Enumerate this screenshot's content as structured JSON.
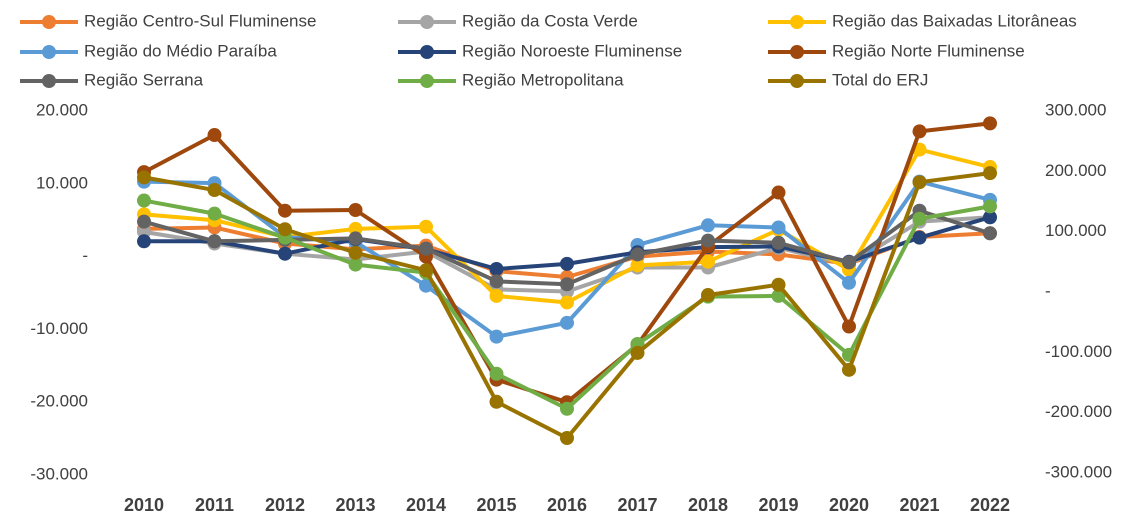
{
  "chart_data": {
    "type": "line",
    "categories": [
      "2010",
      "2011",
      "2012",
      "2013",
      "2014",
      "2015",
      "2016",
      "2017",
      "2018",
      "2019",
      "2020",
      "2021",
      "2022"
    ],
    "ylim": [
      -30000,
      20000
    ],
    "yticks": [
      {
        "value": -30000,
        "label": "-30.000"
      },
      {
        "value": -20000,
        "label": "-20.000"
      },
      {
        "value": -10000,
        "label": "-10.000"
      },
      {
        "value": 0,
        "label": "-"
      },
      {
        "value": 10000,
        "label": "10.000"
      },
      {
        "value": 20000,
        "label": "20.000"
      }
    ],
    "y2lim": [
      -300000,
      300000
    ],
    "y2ticks": [
      {
        "value": -300000,
        "label": "-300.000"
      },
      {
        "value": -200000,
        "label": "-200.000"
      },
      {
        "value": -100000,
        "label": "-100.000"
      },
      {
        "value": 0,
        "label": "-"
      },
      {
        "value": 100000,
        "label": "100.000"
      },
      {
        "value": 200000,
        "label": "200.000"
      },
      {
        "value": 300000,
        "label": "300.000"
      }
    ],
    "grid": false,
    "legend": "top",
    "series": [
      {
        "name": "Região Centro-Sul Fluminense",
        "color": "#ED7D31",
        "values": [
          3800,
          4000,
          1800,
          1000,
          1500,
          -2000,
          -2800,
          0,
          700,
          300,
          -1000,
          2700,
          3200
        ]
      },
      {
        "name": "Região da Costa Verde",
        "color": "#A5A5A5",
        "values": [
          3400,
          1800,
          400,
          -400,
          700,
          -4500,
          -4800,
          -1500,
          -1500,
          1200,
          -1100,
          4800,
          5400
        ]
      },
      {
        "name": "Região das Baixadas Litorâneas",
        "color": "#FFC000",
        "values": [
          5800,
          5000,
          2700,
          3800,
          4100,
          -5400,
          -6300,
          -1200,
          -700,
          3700,
          -1800,
          14700,
          12300
        ]
      },
      {
        "name": "Região do Médio Paraíba",
        "color": "#5B9BD5",
        "values": [
          10300,
          10100,
          2700,
          2000,
          -4000,
          -11000,
          -9100,
          1600,
          4300,
          4000,
          -3600,
          10300,
          7800
        ]
      },
      {
        "name": "Região Noroeste Fluminense",
        "color": "#264478",
        "values": [
          2100,
          2100,
          400,
          2400,
          1000,
          -1700,
          -1000,
          600,
          1300,
          1400,
          -700,
          2600,
          5400
        ]
      },
      {
        "name": "Região Norte Fluminense",
        "color": "#9E480E",
        "values": [
          11600,
          16700,
          6300,
          6400,
          0,
          -16900,
          -20000,
          -12100,
          1400,
          8800,
          -9600,
          17200,
          18300
        ]
      },
      {
        "name": "Região Serrana",
        "color": "#636363",
        "values": [
          4800,
          2100,
          2300,
          2500,
          1100,
          -3400,
          -3800,
          300,
          2200,
          1900,
          -800,
          6300,
          3200
        ]
      },
      {
        "name": "Região Metropolitana",
        "color": "#70AD47",
        "values": [
          7700,
          5900,
          2600,
          -1100,
          -2200,
          -16100,
          -20900,
          -12000,
          -5500,
          -5400,
          -13500,
          5200,
          6900
        ]
      },
      {
        "name": "Total do ERJ",
        "color": "#997300",
        "axis": "y2",
        "values": [
          190000,
          169000,
          104000,
          65000,
          36000,
          -182000,
          -242000,
          -101000,
          -5000,
          12000,
          -129000,
          182000,
          197000
        ]
      }
    ]
  }
}
